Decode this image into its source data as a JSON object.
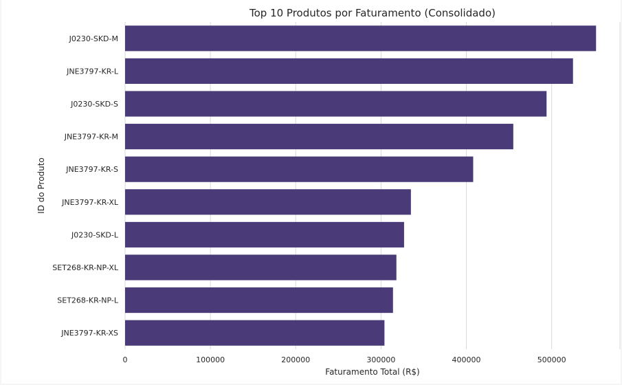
{
  "chart_data": {
    "type": "bar",
    "orientation": "horizontal",
    "title": "Top 10 Produtos por Faturamento (Consolidado)",
    "xlabel": "Faturamento Total (R$)",
    "ylabel": "ID do Produto",
    "categories": [
      "J0230-SKD-M",
      "JNE3797-KR-L",
      "J0230-SKD-S",
      "JNE3797-KR-M",
      "JNE3797-KR-S",
      "JNE3797-KR-XL",
      "J0230-SKD-L",
      "SET268-KR-NP-XL",
      "SET268-KR-NP-L",
      "JNE3797-KR-XS"
    ],
    "values": [
      552000,
      525000,
      494000,
      455000,
      408000,
      335000,
      327000,
      318000,
      314000,
      304000
    ],
    "xlim": [
      0,
      580000
    ],
    "xticks": [
      0,
      100000,
      200000,
      300000,
      400000,
      500000
    ],
    "xtick_labels": [
      "0",
      "100000",
      "200000",
      "300000",
      "400000",
      "500000"
    ],
    "grid": true,
    "bar_color": "#4a3b78",
    "grid_color": "#d9d9d9"
  }
}
